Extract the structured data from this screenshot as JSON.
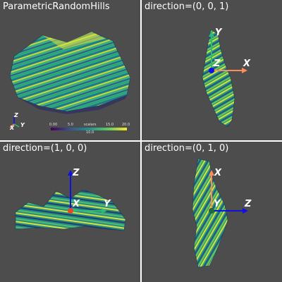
{
  "panels": [
    {
      "title": "ParametricRandomHills"
    },
    {
      "title": "direction=(0, 0, 1)"
    },
    {
      "title": "direction=(1, 0, 0)"
    },
    {
      "title": "direction=(0, 1, 0)"
    }
  ],
  "scalar_bar": {
    "title": "scalars",
    "ticks": [
      "0.00",
      "5.0",
      "10.0",
      "15.0",
      "20.0"
    ]
  },
  "small_axes": {
    "x": "X",
    "y": "Y",
    "z": "Z"
  },
  "axes": {
    "x": "X",
    "y": "Y",
    "z": "Z"
  },
  "colors": {
    "background": "#4d4d4d",
    "x_axis": "#ff8a5c",
    "y_axis": "#2eb87a",
    "z_axis": "#1010e0"
  }
}
